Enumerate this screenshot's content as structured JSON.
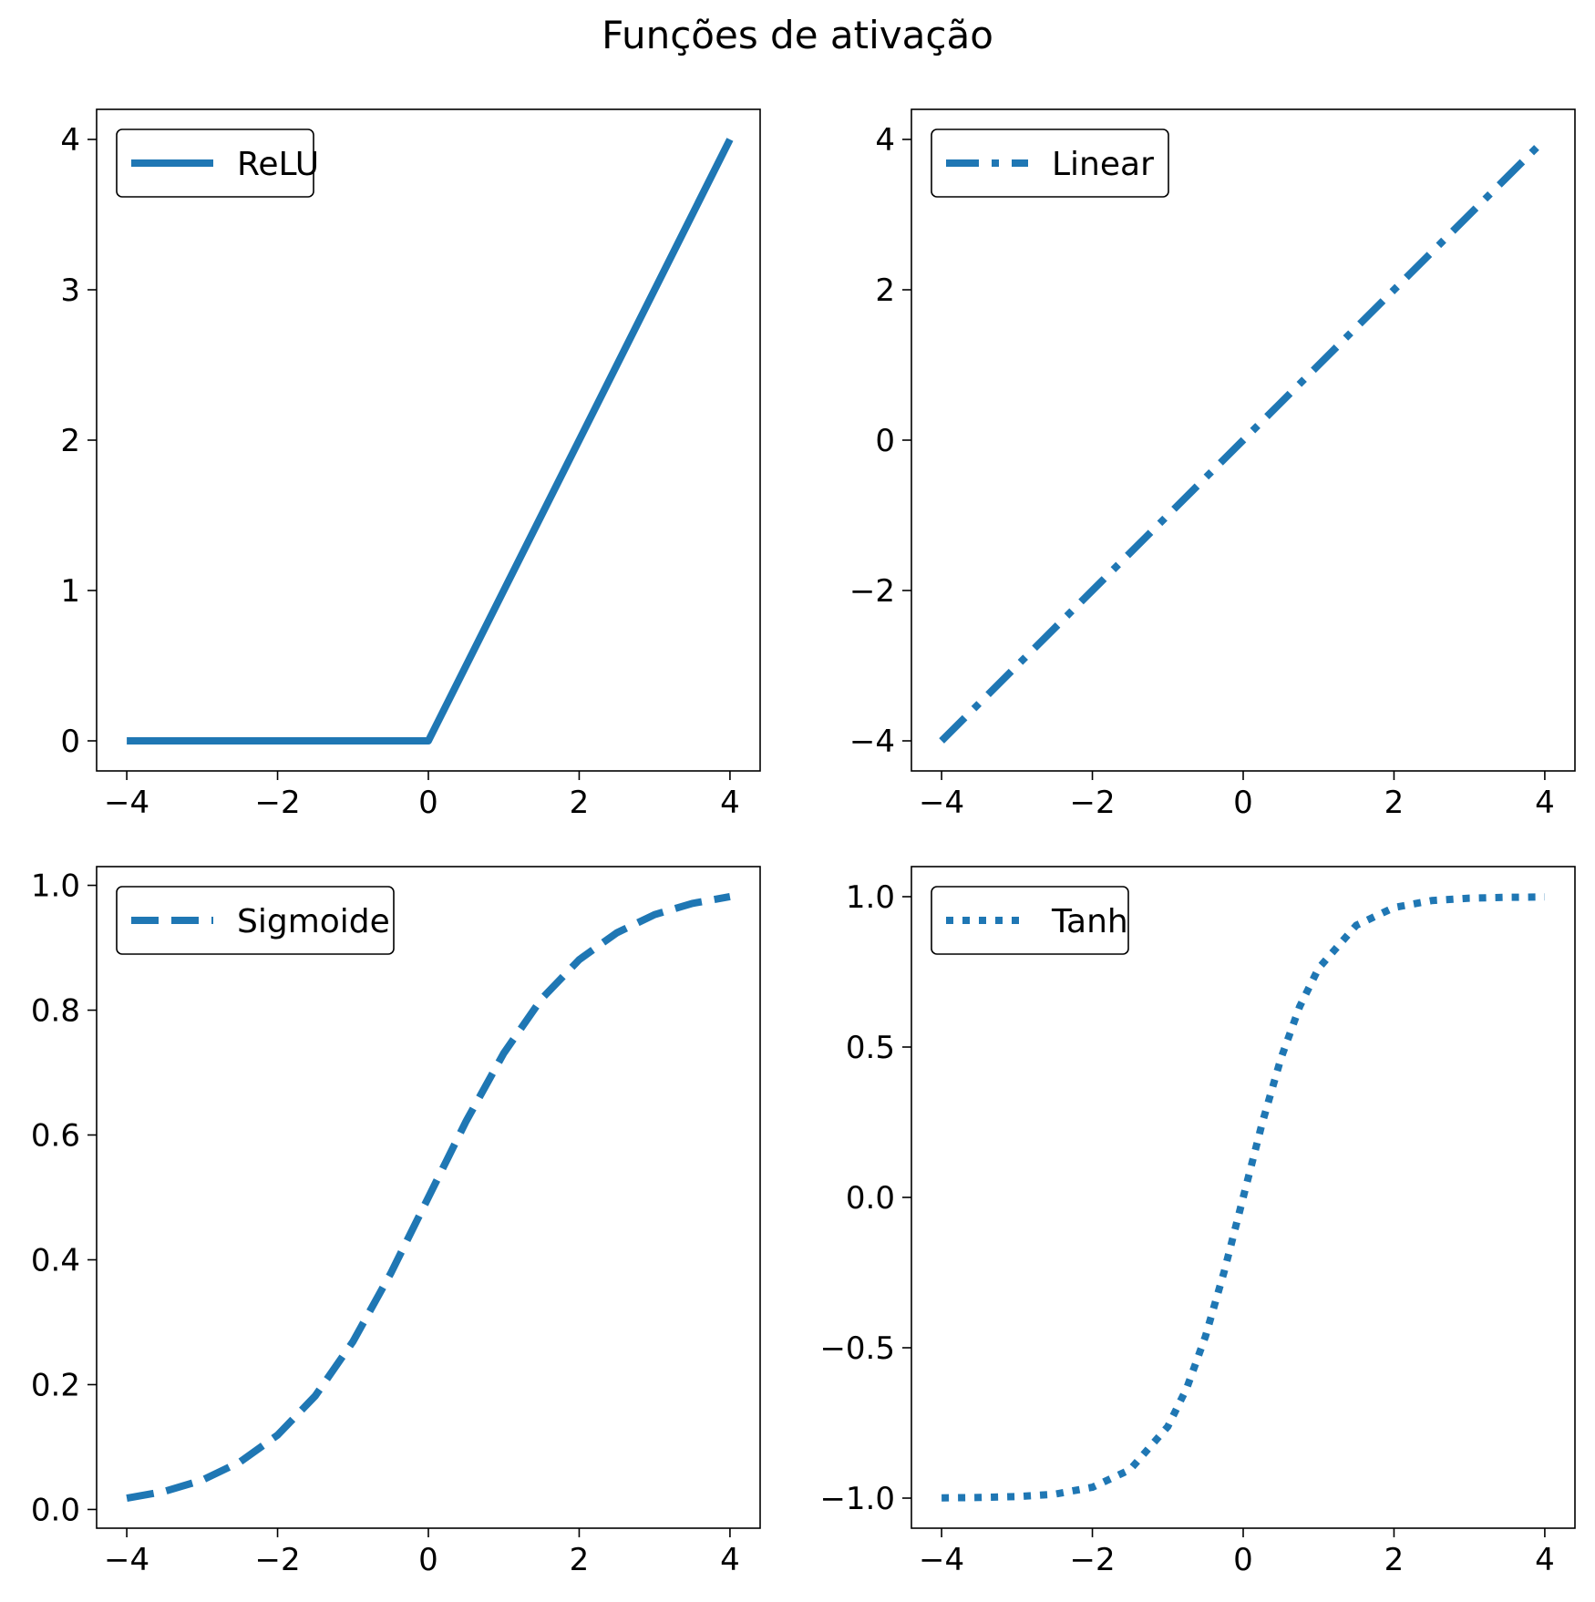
{
  "figure": {
    "suptitle": "Funções de ativação",
    "line_color": "#1f77b4"
  },
  "chart_data": [
    {
      "type": "line",
      "title": "",
      "xlabel": "",
      "ylabel": "",
      "xlim": [
        -4.4,
        4.4
      ],
      "ylim": [
        -0.2,
        4.2
      ],
      "xticks": [
        -4,
        -2,
        0,
        2,
        4
      ],
      "xtick_labels": [
        "−4",
        "−2",
        "0",
        "2",
        "4"
      ],
      "yticks": [
        0,
        1,
        2,
        3,
        4
      ],
      "ytick_labels": [
        "0",
        "1",
        "2",
        "3",
        "4"
      ],
      "grid": false,
      "legend_position": "top-left",
      "series": [
        {
          "name": "ReLU",
          "line_style": "solid",
          "x": [
            -4,
            -3,
            -2,
            -1,
            0,
            1,
            2,
            3,
            4
          ],
          "y": [
            0,
            0,
            0,
            0,
            0,
            1,
            2,
            3,
            4
          ]
        }
      ]
    },
    {
      "type": "line",
      "title": "",
      "xlabel": "",
      "ylabel": "",
      "xlim": [
        -4.4,
        4.4
      ],
      "ylim": [
        -4.4,
        4.4
      ],
      "xticks": [
        -4,
        -2,
        0,
        2,
        4
      ],
      "xtick_labels": [
        "−4",
        "−2",
        "0",
        "2",
        "4"
      ],
      "yticks": [
        -4,
        -2,
        0,
        2,
        4
      ],
      "ytick_labels": [
        "−4",
        "−2",
        "0",
        "2",
        "4"
      ],
      "grid": false,
      "legend_position": "top-left",
      "series": [
        {
          "name": "Linear",
          "line_style": "dashdot",
          "x": [
            -4,
            -2,
            0,
            2,
            3.9
          ],
          "y": [
            -4,
            -2,
            0,
            2,
            3.9
          ]
        }
      ]
    },
    {
      "type": "line",
      "title": "",
      "xlabel": "",
      "ylabel": "",
      "xlim": [
        -4.4,
        4.4
      ],
      "ylim": [
        -0.03,
        1.03
      ],
      "xticks": [
        -4,
        -2,
        0,
        2,
        4
      ],
      "xtick_labels": [
        "−4",
        "−2",
        "0",
        "2",
        "4"
      ],
      "yticks": [
        0,
        0.2,
        0.4,
        0.6,
        0.8,
        1.0
      ],
      "ytick_labels": [
        "0.0",
        "0.2",
        "0.4",
        "0.6",
        "0.8",
        "1.0"
      ],
      "grid": false,
      "legend_position": "top-left",
      "series": [
        {
          "name": "Sigmoide",
          "line_style": "dashed",
          "x": [
            -4,
            -3.5,
            -3,
            -2.5,
            -2,
            -1.5,
            -1,
            -0.5,
            0,
            0.5,
            1,
            1.5,
            2,
            2.5,
            3,
            3.5,
            4
          ],
          "y": [
            0.018,
            0.029,
            0.047,
            0.076,
            0.119,
            0.182,
            0.269,
            0.378,
            0.5,
            0.622,
            0.731,
            0.818,
            0.881,
            0.924,
            0.953,
            0.971,
            0.982
          ]
        }
      ]
    },
    {
      "type": "line",
      "title": "",
      "xlabel": "",
      "ylabel": "",
      "xlim": [
        -4.4,
        4.4
      ],
      "ylim": [
        -1.1,
        1.1
      ],
      "xticks": [
        -4,
        -2,
        0,
        2,
        4
      ],
      "xtick_labels": [
        "−4",
        "−2",
        "0",
        "2",
        "4"
      ],
      "yticks": [
        -1.0,
        -0.5,
        0.0,
        0.5,
        1.0
      ],
      "ytick_labels": [
        "−1.0",
        "−0.5",
        "0.0",
        "0.5",
        "1.0"
      ],
      "grid": false,
      "legend_position": "top-left",
      "series": [
        {
          "name": "Tanh",
          "line_style": "dotted",
          "x": [
            -4,
            -3.5,
            -3,
            -2.5,
            -2,
            -1.5,
            -1,
            -0.75,
            -0.5,
            -0.25,
            0,
            0.25,
            0.5,
            0.75,
            1,
            1.5,
            2,
            2.5,
            3,
            3.5,
            4
          ],
          "y": [
            -0.999,
            -0.998,
            -0.995,
            -0.987,
            -0.964,
            -0.905,
            -0.762,
            -0.635,
            -0.462,
            -0.245,
            0,
            0.245,
            0.462,
            0.635,
            0.762,
            0.905,
            0.964,
            0.987,
            0.995,
            0.998,
            0.999
          ]
        }
      ]
    }
  ]
}
